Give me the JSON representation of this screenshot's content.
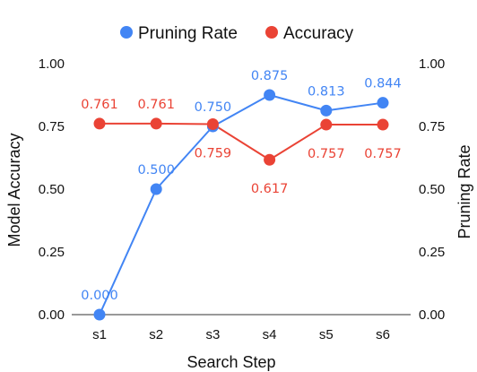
{
  "chart_data": {
    "type": "line",
    "xlabel": "Search Step",
    "ylabel_left": "Model Accuracy",
    "ylabel_right": "Pruning Rate",
    "categories": [
      "s1",
      "s2",
      "s3",
      "s4",
      "s5",
      "s6"
    ],
    "ylim": [
      0,
      1
    ],
    "yticks": [
      "0.00",
      "0.25",
      "0.50",
      "0.75",
      "1.00"
    ],
    "grid": false,
    "legend_position": "top",
    "series": [
      {
        "name": "Pruning Rate",
        "color": "#4285F4",
        "values": [
          0.0,
          0.5,
          0.75,
          0.875,
          0.813,
          0.844
        ],
        "labels": [
          "0.000",
          "0.500",
          "0.750",
          "0.875",
          "0.813",
          "0.844"
        ],
        "label_position": [
          "above",
          "above",
          "above",
          "above",
          "above",
          "above"
        ]
      },
      {
        "name": "Accuracy",
        "color": "#EA4335",
        "values": [
          0.761,
          0.761,
          0.759,
          0.617,
          0.757,
          0.757
        ],
        "labels": [
          "0.761",
          "0.761",
          "0.759",
          "0.617",
          "0.757",
          "0.757"
        ],
        "label_position": [
          "above",
          "above",
          "below",
          "below",
          "below",
          "below"
        ]
      }
    ]
  }
}
